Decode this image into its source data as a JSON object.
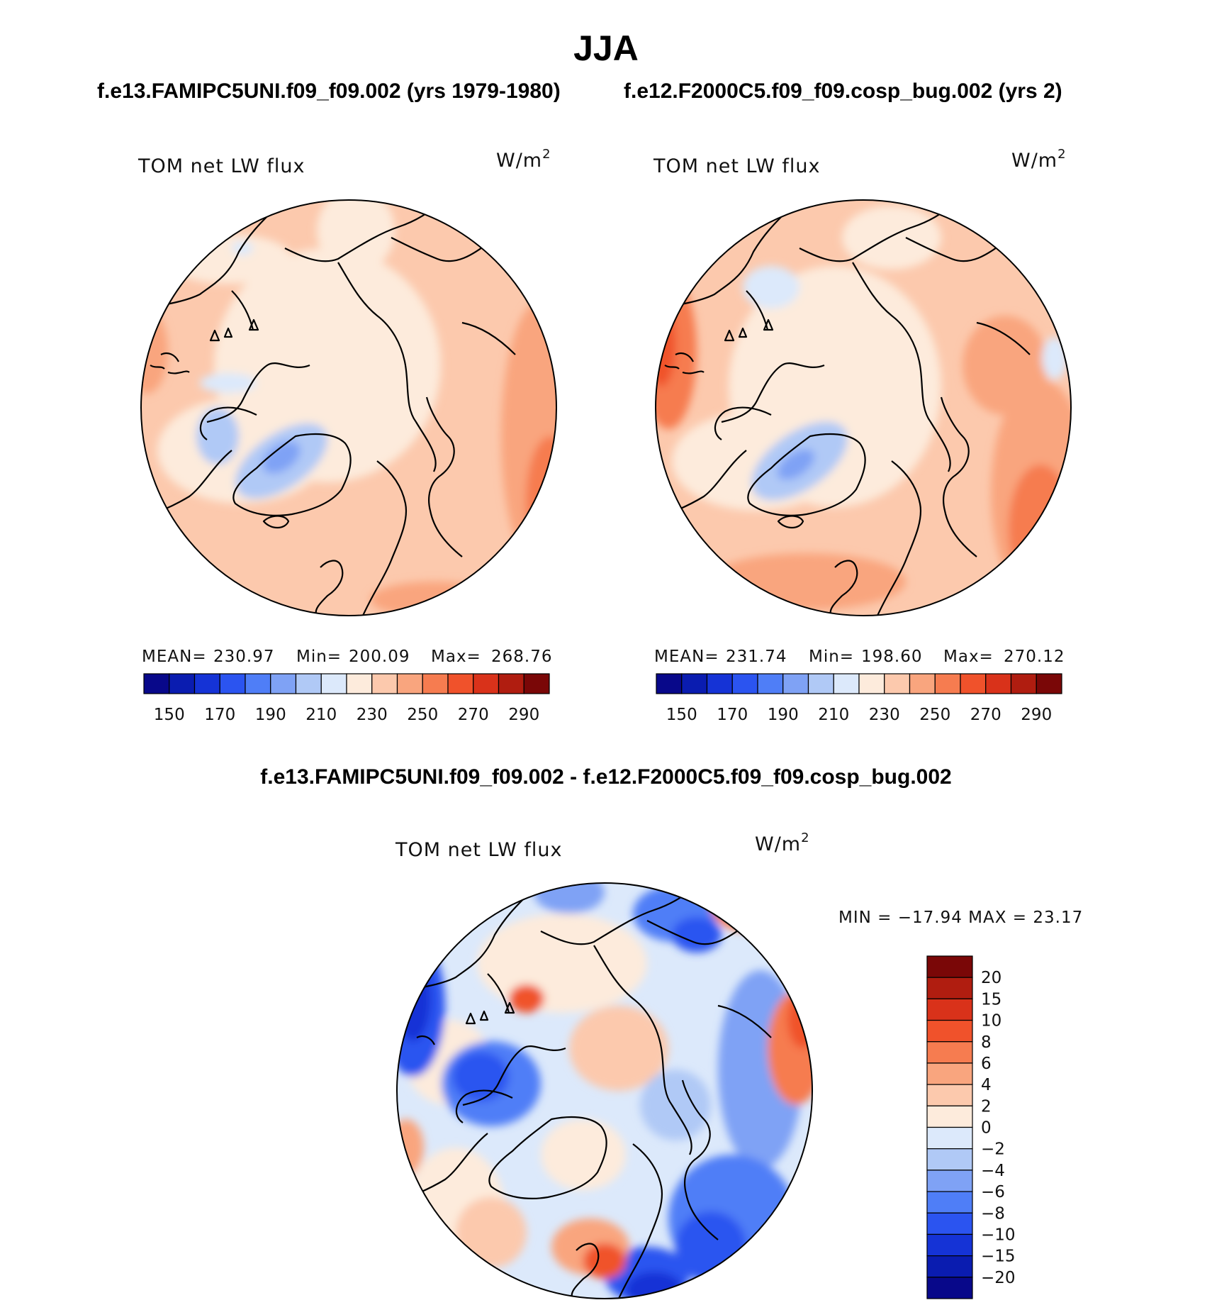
{
  "header": {
    "season": "JJA",
    "case_left": "f.e13.FAMIPC5UNI.f09_f09.002 (yrs 1979-1980)",
    "case_right": "f.e12.F2000C5.f09_f09.cosp_bug.002 (yrs 2)",
    "diff_title": "f.e13.FAMIPC5UNI.f09_f09.002 - f.e12.F2000C5.f09_f09.cosp_bug.002"
  },
  "panels": {
    "left": {
      "variable": "TOM net LW flux",
      "units": "W/m",
      "units_sup": "2",
      "stats": {
        "mean_label": "MEAN=",
        "mean": "230.97",
        "min_label": "Min=",
        "min": "200.09",
        "max_label": "Max=",
        "max": "268.76"
      }
    },
    "right": {
      "variable": "TOM net LW flux",
      "units": "W/m",
      "units_sup": "2",
      "stats": {
        "mean_label": "MEAN=",
        "mean": "231.74",
        "min_label": "Min=",
        "min": "198.60",
        "max_label": "Max=",
        "max": "270.12"
      }
    },
    "diff": {
      "variable": "TOM net LW flux",
      "units": "W/m",
      "units_sup": "2",
      "minmax": "MIN = −17.94 MAX =   23.17"
    }
  },
  "chart_data": [
    {
      "type": "heatmap",
      "title": "TOM net LW flux (f.e13.FAMIPC5UNI.f09_f09.002, yrs 1979-1980)",
      "projection": "north polar stereographic",
      "units": "W/m2",
      "mean": 230.97,
      "min": 200.09,
      "max": 268.76,
      "colorbar_levels": [
        150,
        160,
        170,
        180,
        190,
        200,
        210,
        220,
        230,
        240,
        250,
        260,
        270,
        280,
        290
      ],
      "colorbar_tick_labels": [
        "150",
        "170",
        "190",
        "210",
        "230",
        "250",
        "270",
        "290"
      ],
      "colors": [
        "#08088a",
        "#0a1cb0",
        "#1533d6",
        "#2b54f0",
        "#4f7ef7",
        "#7fa2f5",
        "#b0c9f6",
        "#dce9fb",
        "#fdebdc",
        "#fcc9ad",
        "#f9a57e",
        "#f67c50",
        "#f0522b",
        "#d9321a",
        "#b01d10",
        "#7a0707"
      ]
    },
    {
      "type": "heatmap",
      "title": "TOM net LW flux (f.e12.F2000C5.f09_f09.cosp_bug.002, yrs 2)",
      "projection": "north polar stereographic",
      "units": "W/m2",
      "mean": 231.74,
      "min": 198.6,
      "max": 270.12,
      "colorbar_levels": [
        150,
        160,
        170,
        180,
        190,
        200,
        210,
        220,
        230,
        240,
        250,
        260,
        270,
        280,
        290
      ],
      "colorbar_tick_labels": [
        "150",
        "170",
        "190",
        "210",
        "230",
        "250",
        "270",
        "290"
      ],
      "colors": [
        "#08088a",
        "#0a1cb0",
        "#1533d6",
        "#2b54f0",
        "#4f7ef7",
        "#7fa2f5",
        "#b0c9f6",
        "#dce9fb",
        "#fdebdc",
        "#fcc9ad",
        "#f9a57e",
        "#f67c50",
        "#f0522b",
        "#d9321a",
        "#b01d10",
        "#7a0707"
      ]
    },
    {
      "type": "heatmap",
      "title": "TOM net LW flux difference",
      "projection": "north polar stereographic",
      "units": "W/m2",
      "min": -17.94,
      "max": 23.17,
      "colorbar_levels": [
        -20,
        -15,
        -10,
        -8,
        -6,
        -4,
        -2,
        0,
        2,
        4,
        6,
        8,
        10,
        15,
        20
      ],
      "colorbar_tick_labels": [
        "20",
        "15",
        "10",
        "8",
        "6",
        "4",
        "2",
        "0",
        "−2",
        "−4",
        "−6",
        "−8",
        "−10",
        "−15",
        "−20"
      ],
      "colors": [
        "#08088a",
        "#0a1cb0",
        "#1533d6",
        "#2b54f0",
        "#4f7ef7",
        "#7fa2f5",
        "#b0c9f6",
        "#dce9fb",
        "#fdebdc",
        "#fcc9ad",
        "#f9a57e",
        "#f67c50",
        "#f0522b",
        "#d9321a",
        "#b01d10",
        "#7a0707"
      ]
    }
  ]
}
